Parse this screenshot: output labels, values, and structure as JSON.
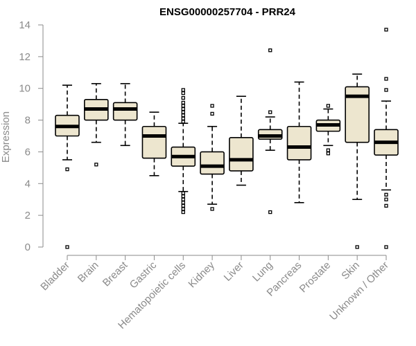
{
  "chart_data": {
    "type": "boxplot",
    "title": "ENSG00000257704 - PRR24",
    "ylabel": "Expression",
    "xlabel": "",
    "ylim": [
      0,
      14
    ],
    "yticks": [
      0,
      2,
      4,
      6,
      8,
      10,
      12,
      14
    ],
    "box_color": "#ede6cf",
    "categories": [
      "Bladder",
      "Brain",
      "Breast",
      "Gastric",
      "Hematopoietic cells",
      "Kidney",
      "Liver",
      "Lung",
      "Pancreas",
      "Prostate",
      "Skin",
      "Unknown / Other"
    ],
    "series": [
      {
        "name": "Bladder",
        "whisker_low": 5.5,
        "q1": 7.0,
        "median": 7.6,
        "q3": 8.3,
        "whisker_high": 10.2,
        "outliers": [
          4.9,
          0.0
        ]
      },
      {
        "name": "Brain",
        "whisker_low": 6.6,
        "q1": 8.0,
        "median": 8.7,
        "q3": 9.3,
        "whisker_high": 10.3,
        "outliers": [
          5.2
        ]
      },
      {
        "name": "Breast",
        "whisker_low": 6.4,
        "q1": 8.0,
        "median": 8.7,
        "q3": 9.1,
        "whisker_high": 10.3,
        "outliers": []
      },
      {
        "name": "Gastric",
        "whisker_low": 4.5,
        "q1": 5.6,
        "median": 7.0,
        "q3": 7.6,
        "whisker_high": 8.5,
        "outliers": []
      },
      {
        "name": "Hematopoietic cells",
        "whisker_low": 3.5,
        "q1": 5.1,
        "median": 5.7,
        "q3": 6.3,
        "whisker_high": 7.8,
        "outliers": [
          9.9,
          9.7,
          9.4,
          9.1,
          8.9,
          8.7,
          8.5,
          8.3,
          8.1,
          7.9,
          3.4,
          3.2,
          3.0,
          2.8,
          2.6,
          2.4,
          2.2
        ]
      },
      {
        "name": "Kidney",
        "whisker_low": 2.7,
        "q1": 4.6,
        "median": 5.1,
        "q3": 6.0,
        "whisker_high": 7.6,
        "outliers": [
          8.9,
          8.4,
          2.4
        ]
      },
      {
        "name": "Liver",
        "whisker_low": 3.9,
        "q1": 4.8,
        "median": 5.5,
        "q3": 6.9,
        "whisker_high": 9.5,
        "outliers": []
      },
      {
        "name": "Lung",
        "whisker_low": 6.1,
        "q1": 6.8,
        "median": 7.0,
        "q3": 7.4,
        "whisker_high": 8.2,
        "outliers": [
          12.4,
          8.5,
          2.2
        ]
      },
      {
        "name": "Pancreas",
        "whisker_low": 2.8,
        "q1": 5.5,
        "median": 6.3,
        "q3": 7.6,
        "whisker_high": 10.4,
        "outliers": []
      },
      {
        "name": "Prostate",
        "whisker_low": 6.4,
        "q1": 7.3,
        "median": 7.7,
        "q3": 8.0,
        "whisker_high": 8.7,
        "outliers": [
          8.9,
          6.1,
          5.9
        ]
      },
      {
        "name": "Skin",
        "whisker_low": 3.0,
        "q1": 6.6,
        "median": 9.5,
        "q3": 10.1,
        "whisker_high": 10.9,
        "outliers": [
          0.0
        ]
      },
      {
        "name": "Unknown / Other",
        "whisker_low": 3.6,
        "q1": 5.8,
        "median": 6.6,
        "q3": 7.4,
        "whisker_high": 9.2,
        "outliers": [
          13.7,
          10.6,
          9.9,
          3.3,
          3.0,
          2.6,
          0.0
        ]
      }
    ]
  }
}
